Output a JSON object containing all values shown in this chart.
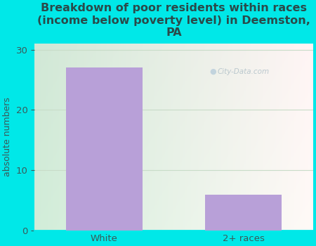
{
  "categories": [
    "White",
    "2+ races"
  ],
  "values": [
    27,
    6
  ],
  "bar_color": "#b8a0d8",
  "title": "Breakdown of poor residents within races\n(income below poverty level) in Deemston,\nPA",
  "ylabel": "absolute numbers",
  "ylim": [
    0,
    31
  ],
  "yticks": [
    0,
    10,
    20,
    30
  ],
  "bg_color": "#00e8e8",
  "title_color": "#2a4a4a",
  "axis_color": "#3a5a5a",
  "watermark": "City-Data.com",
  "title_fontsize": 11.5,
  "ylabel_fontsize": 9,
  "tick_fontsize": 9.5,
  "plot_bg_left": "#d0edd8",
  "plot_bg_right": "#f0f8f8",
  "grid_color": "#d8e8d8"
}
